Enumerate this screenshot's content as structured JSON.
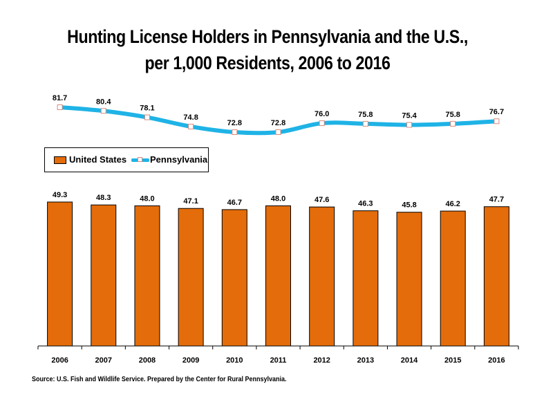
{
  "title_line1": "Hunting License Holders in Pennsylvania and the U.S.,",
  "title_line2": "per 1,000 Residents, 2006 to 2016",
  "source": "Source: U.S. Fish and Wildlife Service. Prepared by the Center for Rural Pennsylvania.",
  "colors": {
    "bar": "#e46c0a",
    "line": "#1fb3e6",
    "marker_border": "#d98a7a"
  },
  "legend": {
    "bar_label": "United States",
    "line_label": "Pennsylvania",
    "placement": "left, between line and bars"
  },
  "chart_data": {
    "type": "bar+line",
    "categories": [
      "2006",
      "2007",
      "2008",
      "2009",
      "2010",
      "2011",
      "2012",
      "2013",
      "2014",
      "2015",
      "2016"
    ],
    "series": [
      {
        "name": "United States",
        "type": "bar",
        "values": [
          49.3,
          48.3,
          48.0,
          47.1,
          46.7,
          48.0,
          47.6,
          46.3,
          45.8,
          46.2,
          47.7
        ]
      },
      {
        "name": "Pennsylvania",
        "type": "line",
        "values": [
          81.7,
          80.4,
          78.1,
          74.8,
          72.8,
          72.8,
          76.0,
          75.8,
          75.4,
          75.8,
          76.7
        ]
      }
    ],
    "data_labels": {
      "United States": [
        "49.3",
        "48.3",
        "48.0",
        "47.1",
        "46.7",
        "48.0",
        "47.6",
        "46.3",
        "45.8",
        "46.2",
        "47.7"
      ],
      "Pennsylvania": [
        "81.7",
        "80.4",
        "78.1",
        "74.8",
        "72.8",
        "72.8",
        "76.0",
        "75.8",
        "75.4",
        "75.8",
        "76.7"
      ]
    },
    "grid": false
  }
}
